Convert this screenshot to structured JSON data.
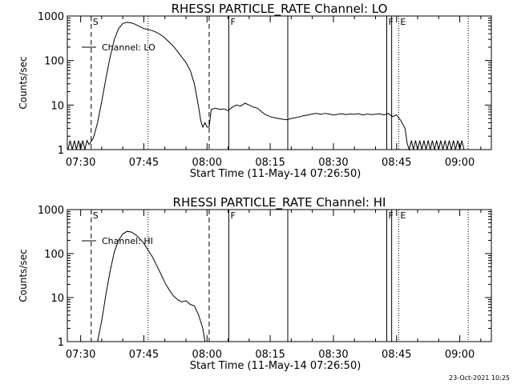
{
  "footer_timestamp": "23-Oct-2021 10:25",
  "chart_data": [
    {
      "type": "line",
      "title": "RHESSI PARTICLE_RATE Channel: LO",
      "xlabel": "Start Time (11-May-14 07:26:50)",
      "ylabel": "Counts/sec",
      "x_unit": "time (UT)",
      "xlim": [
        "07:26:50",
        "09:07:30"
      ],
      "ylim": [
        1,
        1000
      ],
      "y_scale": "log",
      "x_tick_labels": [
        "07:30",
        "07:45",
        "08:00",
        "08:15",
        "08:30",
        "08:45",
        "09:00"
      ],
      "y_tick_labels": [
        "1",
        "10",
        "100",
        "1000"
      ],
      "legend": "Channel: LO",
      "legend_position": "upper-left",
      "markers": [
        {
          "label": "S",
          "time": "07:32:30",
          "style": "dashed"
        },
        {
          "label": "",
          "time": "08:00:30",
          "style": "dashed"
        },
        {
          "label": "",
          "time": "07:46:00",
          "style": "dotted"
        },
        {
          "label": "F",
          "time": "08:05:10",
          "style": "solid"
        },
        {
          "label": "",
          "time": "08:19:10",
          "style": "solid"
        },
        {
          "label": "F",
          "time": "08:42:40",
          "style": "solid"
        },
        {
          "label": "",
          "time": "08:43:50",
          "style": "solid"
        },
        {
          "label": "E",
          "time": "08:45:30",
          "style": "dotted"
        },
        {
          "label": "",
          "time": "09:02:00",
          "style": "dotted"
        }
      ],
      "series": [
        {
          "name": "Channel: LO",
          "points": [
            [
              "07:27:00",
              1
            ],
            [
              "07:27:30",
              1.6
            ],
            [
              "07:28:00",
              1
            ],
            [
              "07:28:30",
              1.6
            ],
            [
              "07:29:00",
              1
            ],
            [
              "07:29:30",
              1.6
            ],
            [
              "07:30:00",
              1
            ],
            [
              "07:30:30",
              1.6
            ],
            [
              "07:31:00",
              1
            ],
            [
              "07:31:30",
              1.6
            ],
            [
              "07:32:00",
              1.3
            ],
            [
              "07:33:00",
              1.8
            ],
            [
              "07:34:00",
              4
            ],
            [
              "07:35:00",
              12
            ],
            [
              "07:36:00",
              40
            ],
            [
              "07:37:00",
              120
            ],
            [
              "07:38:00",
              300
            ],
            [
              "07:39:00",
              520
            ],
            [
              "07:40:00",
              680
            ],
            [
              "07:41:00",
              720
            ],
            [
              "07:42:00",
              700
            ],
            [
              "07:43:00",
              650
            ],
            [
              "07:44:00",
              580
            ],
            [
              "07:45:00",
              520
            ],
            [
              "07:46:00",
              500
            ],
            [
              "07:47:00",
              470
            ],
            [
              "07:48:00",
              430
            ],
            [
              "07:49:00",
              380
            ],
            [
              "07:50:00",
              320
            ],
            [
              "07:51:00",
              260
            ],
            [
              "07:52:00",
              210
            ],
            [
              "07:53:00",
              160
            ],
            [
              "07:54:00",
              120
            ],
            [
              "07:55:00",
              90
            ],
            [
              "07:56:00",
              60
            ],
            [
              "07:57:00",
              30
            ],
            [
              "07:58:00",
              9
            ],
            [
              "07:58:30",
              4.5
            ],
            [
              "07:59:00",
              3.2
            ],
            [
              "07:59:30",
              4
            ],
            [
              "08:00:00",
              3.2
            ],
            [
              "08:00:30",
              3.2
            ],
            [
              "08:01:00",
              8
            ],
            [
              "08:02:00",
              8.5
            ],
            [
              "08:03:00",
              8
            ],
            [
              "08:04:00",
              8.2
            ],
            [
              "08:05:00",
              7.5
            ],
            [
              "08:06:00",
              9
            ],
            [
              "08:07:00",
              10
            ],
            [
              "08:08:00",
              9.5
            ],
            [
              "08:09:00",
              11
            ],
            [
              "08:10:00",
              10
            ],
            [
              "08:11:00",
              9
            ],
            [
              "08:12:00",
              8.5
            ],
            [
              "08:13:00",
              7
            ],
            [
              "08:14:00",
              6
            ],
            [
              "08:15:00",
              5.5
            ],
            [
              "08:16:00",
              5.2
            ],
            [
              "08:17:00",
              5
            ],
            [
              "08:18:00",
              4.8
            ],
            [
              "08:19:00",
              4.7
            ],
            [
              "08:20:00",
              5
            ],
            [
              "08:21:00",
              5.2
            ],
            [
              "08:22:00",
              5.5
            ],
            [
              "08:23:00",
              5.8
            ],
            [
              "08:24:00",
              6
            ],
            [
              "08:25:00",
              6.3
            ],
            [
              "08:26:00",
              6.5
            ],
            [
              "08:27:00",
              6.2
            ],
            [
              "08:28:00",
              6.5
            ],
            [
              "08:29:00",
              6.3
            ],
            [
              "08:30:00",
              6
            ],
            [
              "08:31:00",
              6.2
            ],
            [
              "08:32:00",
              6.4
            ],
            [
              "08:33:00",
              6.1
            ],
            [
              "08:34:00",
              6.3
            ],
            [
              "08:35:00",
              6.2
            ],
            [
              "08:36:00",
              6.4
            ],
            [
              "08:37:00",
              6
            ],
            [
              "08:38:00",
              6.3
            ],
            [
              "08:39:00",
              6.1
            ],
            [
              "08:40:00",
              6.2
            ],
            [
              "08:41:00",
              6.4
            ],
            [
              "08:42:00",
              6
            ],
            [
              "08:43:00",
              6.5
            ],
            [
              "08:44:00",
              5.5
            ],
            [
              "08:45:00",
              6
            ],
            [
              "08:46:00",
              4.5
            ],
            [
              "08:47:00",
              3
            ],
            [
              "08:47:30",
              1.4
            ],
            [
              "08:48:00",
              1
            ],
            [
              "08:48:30",
              1.6
            ],
            [
              "08:49:00",
              1
            ],
            [
              "08:49:30",
              1.6
            ],
            [
              "08:50:00",
              1
            ],
            [
              "08:50:30",
              1.6
            ],
            [
              "08:51:00",
              1
            ],
            [
              "08:51:30",
              1.6
            ],
            [
              "08:52:00",
              1
            ],
            [
              "08:52:30",
              1.6
            ],
            [
              "08:53:00",
              1
            ],
            [
              "08:53:30",
              1.6
            ],
            [
              "08:54:00",
              1
            ],
            [
              "08:54:30",
              1.6
            ],
            [
              "08:55:00",
              1
            ],
            [
              "08:55:30",
              1.6
            ],
            [
              "08:56:00",
              1
            ],
            [
              "08:56:30",
              1.6
            ],
            [
              "08:57:00",
              1
            ],
            [
              "08:57:30",
              1.6
            ],
            [
              "08:58:00",
              1
            ],
            [
              "08:58:30",
              1.6
            ],
            [
              "08:59:00",
              1
            ],
            [
              "08:59:30",
              1.6
            ],
            [
              "09:00:00",
              1
            ],
            [
              "09:00:30",
              1.6
            ],
            [
              "09:01:00",
              1
            ]
          ]
        }
      ]
    },
    {
      "type": "line",
      "title": "RHESSI PARTICLE_RATE Channel: HI",
      "xlabel": "Start Time (11-May-14 07:26:50)",
      "ylabel": "Counts/sec",
      "x_unit": "time (UT)",
      "xlim": [
        "07:26:50",
        "09:07:30"
      ],
      "ylim": [
        1,
        1000
      ],
      "y_scale": "log",
      "x_tick_labels": [
        "07:30",
        "07:45",
        "08:00",
        "08:15",
        "08:30",
        "08:45",
        "09:00"
      ],
      "y_tick_labels": [
        "1",
        "10",
        "100",
        "1000"
      ],
      "legend": "Channel: HI",
      "legend_position": "upper-left",
      "markers": [
        {
          "label": "S",
          "time": "07:32:30",
          "style": "dashed"
        },
        {
          "label": "",
          "time": "08:00:30",
          "style": "dashed"
        },
        {
          "label": "",
          "time": "07:46:00",
          "style": "dotted"
        },
        {
          "label": "F",
          "time": "08:05:10",
          "style": "solid"
        },
        {
          "label": "",
          "time": "08:19:10",
          "style": "solid"
        },
        {
          "label": "F",
          "time": "08:42:40",
          "style": "solid"
        },
        {
          "label": "",
          "time": "08:43:50",
          "style": "solid"
        },
        {
          "label": "E",
          "time": "08:45:30",
          "style": "dotted"
        },
        {
          "label": "",
          "time": "09:02:00",
          "style": "dotted"
        }
      ],
      "series": [
        {
          "name": "Channel: HI",
          "points": [
            [
              "07:34:00",
              1
            ],
            [
              "07:35:00",
              3
            ],
            [
              "07:36:00",
              12
            ],
            [
              "07:37:00",
              40
            ],
            [
              "07:38:00",
              110
            ],
            [
              "07:39:00",
              200
            ],
            [
              "07:40:00",
              280
            ],
            [
              "07:41:00",
              320
            ],
            [
              "07:42:00",
              310
            ],
            [
              "07:43:00",
              270
            ],
            [
              "07:44:00",
              220
            ],
            [
              "07:45:00",
              170
            ],
            [
              "07:46:00",
              120
            ],
            [
              "07:47:00",
              85
            ],
            [
              "07:48:00",
              55
            ],
            [
              "07:49:00",
              35
            ],
            [
              "07:50:00",
              22
            ],
            [
              "07:51:00",
              15
            ],
            [
              "07:52:00",
              11
            ],
            [
              "07:53:00",
              9
            ],
            [
              "07:54:00",
              8
            ],
            [
              "07:55:00",
              8.5
            ],
            [
              "07:56:00",
              7
            ],
            [
              "07:57:00",
              6.5
            ],
            [
              "07:58:00",
              4
            ],
            [
              "07:59:00",
              2
            ],
            [
              "07:59:30",
              1
            ]
          ]
        }
      ]
    }
  ]
}
